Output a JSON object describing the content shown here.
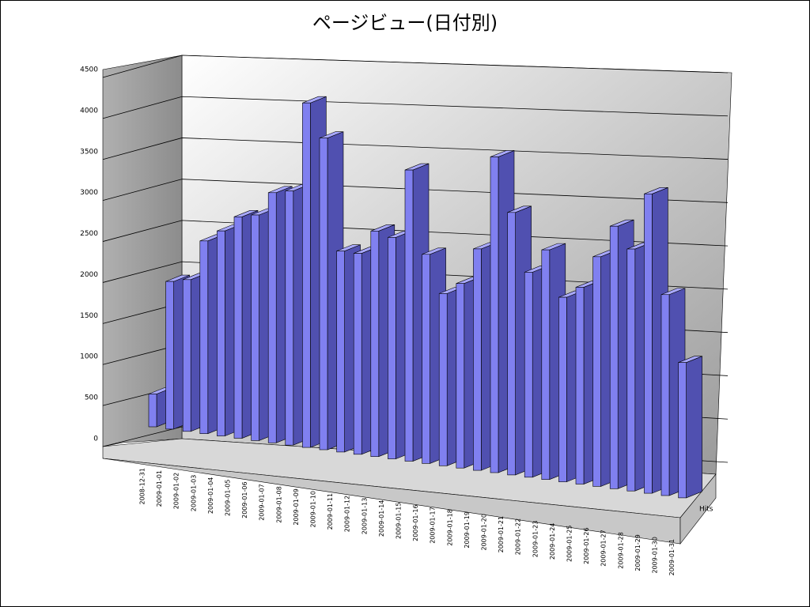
{
  "chart_data": {
    "type": "bar3d",
    "title": "ページビュー(日付別)",
    "categories": [
      "2008-12-31",
      "2009-01-01",
      "2009-01-02",
      "2009-01-03",
      "2009-01-04",
      "2009-01-05",
      "2009-01-06",
      "2009-01-07",
      "2009-01-08",
      "2009-01-09",
      "2009-01-10",
      "2009-01-11",
      "2009-01-12",
      "2009-01-13",
      "2009-01-14",
      "2009-01-15",
      "2009-01-16",
      "2009-01-17",
      "2009-01-18",
      "2009-01-19",
      "2009-01-20",
      "2009-01-21",
      "2009-01-22",
      "2009-01-23",
      "2009-01-24",
      "2009-01-25",
      "2009-01-26",
      "2009-01-27",
      "2009-01-28",
      "2009-01-29",
      "2009-01-30",
      "2009-01-31"
    ],
    "series": [
      {
        "name": "Hits",
        "color": "#8080f0",
        "values": [
          400,
          1800,
          1850,
          2350,
          2500,
          2700,
          2750,
          3050,
          3100,
          4200,
          3800,
          2450,
          2450,
          2750,
          2700,
          3550,
          2550,
          2100,
          2250,
          2700,
          3850,
          3200,
          2500,
          2800,
          2250,
          2400,
          2800,
          3200,
          2950,
          3650,
          2450,
          1650
        ]
      }
    ],
    "ylim": [
      0,
      4500
    ],
    "yticks": [
      0,
      500,
      1000,
      1500,
      2000,
      2500,
      3000,
      3500,
      4000,
      4500
    ],
    "grid": true
  }
}
